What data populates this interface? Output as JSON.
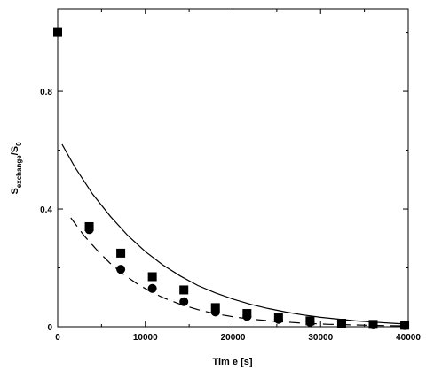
{
  "chart_data": {
    "type": "scatter",
    "xlabel": "Tim e [s]",
    "ylabel_main": "S",
    "ylabel_sub1": "exchange",
    "ylabel_mid": "/S",
    "ylabel_sub2": "0",
    "xlim": [
      0,
      40000
    ],
    "ylim": [
      0,
      1.08
    ],
    "x_ticks": [
      0,
      10000,
      20000,
      30000,
      40000
    ],
    "x_tick_labels": [
      "0",
      "10000",
      "20000",
      "30000",
      "40000"
    ],
    "y_ticks": [
      0,
      0.4,
      0.8
    ],
    "y_tick_labels": [
      "0",
      "0.4",
      "0.8"
    ],
    "grid": false,
    "series": [
      {
        "marker": "square",
        "color": "#000000",
        "points": [
          [
            0,
            1.0
          ],
          [
            3600,
            0.34
          ],
          [
            7200,
            0.25
          ],
          [
            10800,
            0.17
          ],
          [
            14400,
            0.125
          ],
          [
            18000,
            0.065
          ],
          [
            21600,
            0.045
          ],
          [
            25200,
            0.03
          ],
          [
            28800,
            0.02
          ],
          [
            32400,
            0.012
          ],
          [
            36000,
            0.008
          ],
          [
            39600,
            0.005
          ]
        ]
      },
      {
        "marker": "circle",
        "color": "#000000",
        "points": [
          [
            3600,
            0.33
          ],
          [
            7200,
            0.195
          ],
          [
            10800,
            0.13
          ],
          [
            14400,
            0.085
          ],
          [
            18000,
            0.05
          ],
          [
            21600,
            0.035
          ],
          [
            25200,
            0.025
          ],
          [
            28800,
            0.015
          ],
          [
            32400,
            0.01
          ],
          [
            36000,
            0.006
          ],
          [
            39600,
            0.004
          ]
        ]
      },
      {
        "style": "solid-line",
        "color": "#000000",
        "points": [
          [
            500,
            0.62
          ],
          [
            2000,
            0.54
          ],
          [
            4000,
            0.45
          ],
          [
            6000,
            0.375
          ],
          [
            8000,
            0.31
          ],
          [
            10000,
            0.255
          ],
          [
            12000,
            0.21
          ],
          [
            14000,
            0.172
          ],
          [
            16000,
            0.14
          ],
          [
            18000,
            0.115
          ],
          [
            20000,
            0.094
          ],
          [
            22000,
            0.076
          ],
          [
            24000,
            0.062
          ],
          [
            26000,
            0.05
          ],
          [
            28000,
            0.04
          ],
          [
            30000,
            0.032
          ],
          [
            32000,
            0.026
          ],
          [
            34000,
            0.02
          ],
          [
            36000,
            0.016
          ],
          [
            38000,
            0.012
          ],
          [
            40000,
            0.009
          ]
        ]
      },
      {
        "style": "dashed-line",
        "color": "#000000",
        "points": [
          [
            1500,
            0.37
          ],
          [
            3000,
            0.31
          ],
          [
            4500,
            0.26
          ],
          [
            6000,
            0.215
          ],
          [
            7500,
            0.178
          ],
          [
            9000,
            0.147
          ],
          [
            10500,
            0.121
          ],
          [
            12000,
            0.099
          ],
          [
            14000,
            0.076
          ],
          [
            16000,
            0.058
          ],
          [
            18000,
            0.044
          ],
          [
            20000,
            0.034
          ],
          [
            22000,
            0.026
          ],
          [
            25000,
            0.018
          ],
          [
            28000,
            0.012
          ],
          [
            31000,
            0.008
          ],
          [
            34000,
            0.006
          ],
          [
            37000,
            0.004
          ],
          [
            40000,
            0.003
          ]
        ]
      }
    ]
  }
}
